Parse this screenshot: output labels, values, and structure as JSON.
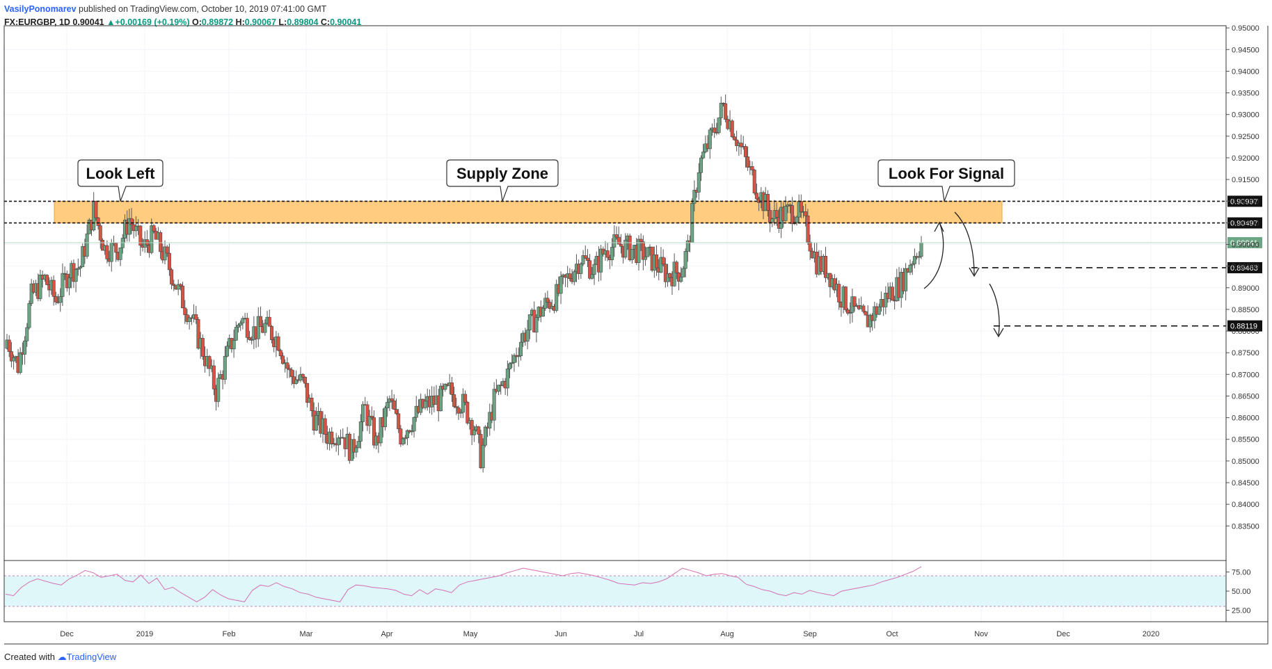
{
  "header": {
    "author": "VasilyPonomarev",
    "published": "published on TradingView.com, October 10, 2019 07:41:00 GMT",
    "symbol": "FX:EURGBP, 1D",
    "last": "0.90041",
    "change": "+0.00169 (+0.19%)",
    "o_label": "O:",
    "o_value": "0.89872",
    "h_label": "H:",
    "h_value": "0.90067",
    "l_label": "L:",
    "l_value": "0.89804",
    "c_label": "C:",
    "c_value": "0.90041"
  },
  "footer": {
    "created": "Created with",
    "brand": "TradingView"
  },
  "colors": {
    "up": "#6ba583",
    "down": "#d75442",
    "zone": "#ffcc80",
    "rsi_band": "#e0f7fa",
    "rsi_line": "#d46fb0",
    "last_price": "#6ba583"
  },
  "chart_data": {
    "type": "candlestick",
    "symbol": "FX:EURGBP",
    "timeframe": "1D",
    "ylim": [
      0.8275,
      0.9505
    ],
    "y_ticks": [
      "0.95000",
      "0.94500",
      "0.94000",
      "0.93500",
      "0.93000",
      "0.92500",
      "0.92000",
      "0.91500",
      "0.91000",
      "0.90500",
      "0.90000",
      "0.89500",
      "0.89000",
      "0.88500",
      "0.88000",
      "0.87500",
      "0.87000",
      "0.86500",
      "0.86000",
      "0.85500",
      "0.85000",
      "0.84500",
      "0.84000",
      "0.83500"
    ],
    "x_ticks": [
      "Dec",
      "2019",
      "Feb",
      "Mar",
      "Apr",
      "May",
      "Jun",
      "Jul",
      "Aug",
      "Sep",
      "Oct",
      "Nov",
      "Dec",
      "2020"
    ],
    "supply_zone": {
      "low": 0.90497,
      "high": 0.90997
    },
    "levels": [
      "0.90997",
      "0.90497",
      "0.89463",
      "0.88119"
    ],
    "level_values": [
      0.90997,
      0.90497,
      0.89463,
      0.88119
    ],
    "last_price": {
      "label": "0.90041",
      "value": 0.90041
    },
    "annotations": [
      "Look Left",
      "Supply Zone",
      "Look For Signal"
    ],
    "close_path": [
      [
        0,
        0.878
      ],
      [
        5,
        0.872
      ],
      [
        11,
        0.888
      ],
      [
        17,
        0.892
      ],
      [
        22,
        0.887
      ],
      [
        28,
        0.894
      ],
      [
        33,
        0.895
      ],
      [
        39,
        0.908
      ],
      [
        44,
        0.899
      ],
      [
        50,
        0.899
      ],
      [
        55,
        0.906
      ],
      [
        61,
        0.899
      ],
      [
        66,
        0.902
      ],
      [
        72,
        0.896
      ],
      [
        78,
        0.888
      ],
      [
        83,
        0.883
      ],
      [
        89,
        0.874
      ],
      [
        94,
        0.866
      ],
      [
        100,
        0.876
      ],
      [
        105,
        0.883
      ],
      [
        111,
        0.88
      ],
      [
        116,
        0.881
      ],
      [
        122,
        0.878
      ],
      [
        127,
        0.87
      ],
      [
        133,
        0.868
      ],
      [
        138,
        0.86
      ],
      [
        144,
        0.856
      ],
      [
        150,
        0.857
      ],
      [
        155,
        0.852
      ],
      [
        161,
        0.862
      ],
      [
        166,
        0.854
      ],
      [
        172,
        0.864
      ],
      [
        177,
        0.856
      ],
      [
        183,
        0.86
      ],
      [
        188,
        0.863
      ],
      [
        194,
        0.864
      ],
      [
        199,
        0.866
      ],
      [
        205,
        0.863
      ],
      [
        210,
        0.858
      ],
      [
        213,
        0.851
      ],
      [
        219,
        0.864
      ],
      [
        225,
        0.87
      ],
      [
        231,
        0.878
      ],
      [
        236,
        0.882
      ],
      [
        242,
        0.886
      ],
      [
        247,
        0.888
      ],
      [
        253,
        0.893
      ],
      [
        258,
        0.897
      ],
      [
        264,
        0.894
      ],
      [
        269,
        0.899
      ],
      [
        275,
        0.9
      ],
      [
        280,
        0.899
      ],
      [
        286,
        0.898
      ],
      [
        291,
        0.896
      ],
      [
        297,
        0.893
      ],
      [
        303,
        0.894
      ],
      [
        306,
        0.899
      ],
      [
        311,
        0.918
      ],
      [
        316,
        0.924
      ],
      [
        322,
        0.932
      ],
      [
        327,
        0.926
      ],
      [
        333,
        0.918
      ],
      [
        338,
        0.912
      ],
      [
        344,
        0.906
      ],
      [
        349,
        0.907
      ],
      [
        355,
        0.908
      ],
      [
        359,
        0.904
      ],
      [
        364,
        0.896
      ],
      [
        369,
        0.894
      ],
      [
        375,
        0.888
      ],
      [
        380,
        0.885
      ],
      [
        386,
        0.882
      ],
      [
        391,
        0.885
      ],
      [
        397,
        0.889
      ],
      [
        402,
        0.891
      ],
      [
        406,
        0.896
      ],
      [
        411,
        0.9004
      ]
    ],
    "rsi": {
      "ylim": [
        10,
        90
      ],
      "y_ticks": [
        "75.00",
        "50.00",
        "25.00"
      ],
      "band": [
        30,
        70
      ],
      "values": [
        46,
        44,
        55,
        62,
        66,
        63,
        60,
        58,
        66,
        71,
        77,
        74,
        68,
        70,
        72,
        64,
        62,
        71,
        60,
        67,
        52,
        55,
        48,
        42,
        36,
        42,
        52,
        45,
        40,
        38,
        36,
        51,
        58,
        56,
        61,
        56,
        53,
        48,
        46,
        42,
        40,
        38,
        36,
        52,
        58,
        57,
        55,
        54,
        53,
        51,
        46,
        44,
        52,
        46,
        53,
        51,
        48,
        58,
        62,
        64,
        66,
        68,
        70,
        74,
        77,
        80,
        78,
        76,
        74,
        72,
        70,
        73,
        74,
        72,
        70,
        67,
        64,
        60,
        59,
        58,
        61,
        60,
        62,
        66,
        73,
        80,
        77,
        74,
        70,
        72,
        73,
        70,
        68,
        59,
        56,
        52,
        50,
        46,
        44,
        48,
        46,
        51,
        48,
        46,
        44,
        50,
        52,
        54,
        56,
        58,
        62,
        65,
        68,
        72,
        76,
        82
      ]
    }
  }
}
